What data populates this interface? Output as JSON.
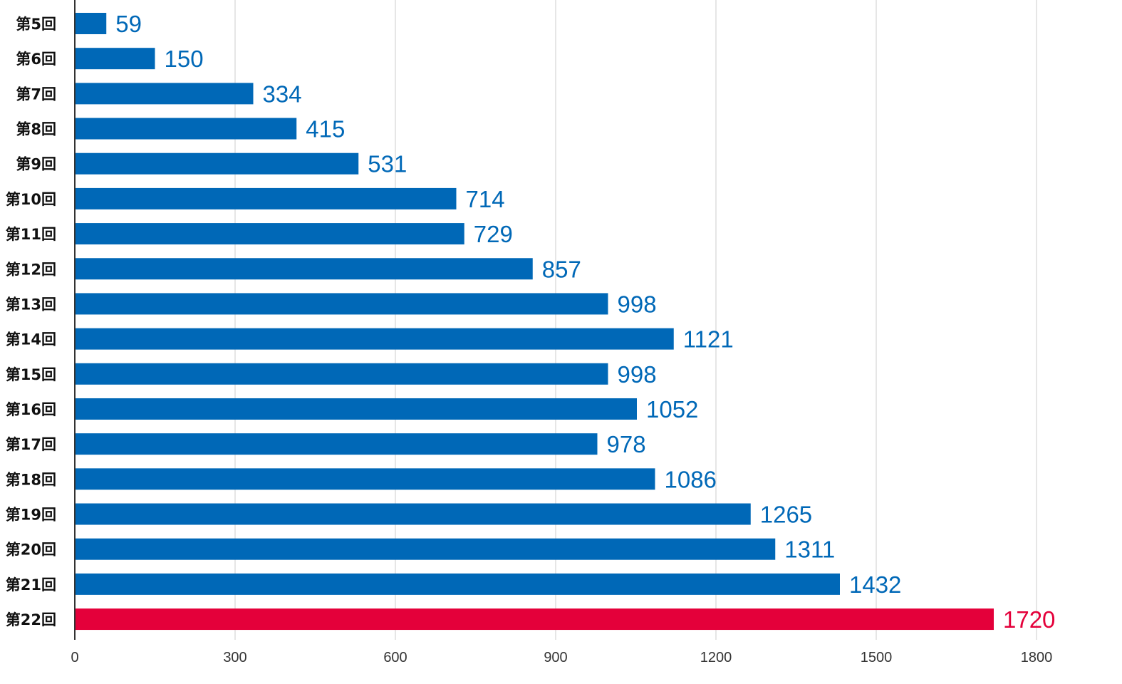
{
  "chart_data": {
    "type": "bar",
    "orientation": "horizontal",
    "categories": [
      "第5回",
      "第6回",
      "第7回",
      "第8回",
      "第9回",
      "第10回",
      "第11回",
      "第12回",
      "第13回",
      "第14回",
      "第15回",
      "第16回",
      "第17回",
      "第18回",
      "第19回",
      "第20回",
      "第21回",
      "第22回"
    ],
    "values": [
      59,
      150,
      334,
      415,
      531,
      714,
      729,
      857,
      998,
      1121,
      998,
      1052,
      978,
      1086,
      1265,
      1311,
      1432,
      1720
    ],
    "value_labels": [
      "59",
      "150",
      "334",
      "415",
      "531",
      "714",
      "729",
      "857",
      "998",
      "1121",
      "998",
      "1052",
      "978",
      "1086",
      "1265",
      "1311",
      "1432",
      "1720"
    ],
    "highlight_index": 17,
    "xlim": [
      0,
      1800
    ],
    "x_ticks": [
      0,
      300,
      600,
      900,
      1200,
      1500,
      1800
    ],
    "x_tick_labels": [
      "0",
      "300",
      "600",
      "900",
      "1200",
      "1500",
      "1800"
    ],
    "grid": "vertical",
    "colors": {
      "bar": "#0068b7",
      "highlight": "#e4003a",
      "grid": "#cccccc",
      "axis": "#333333"
    }
  }
}
